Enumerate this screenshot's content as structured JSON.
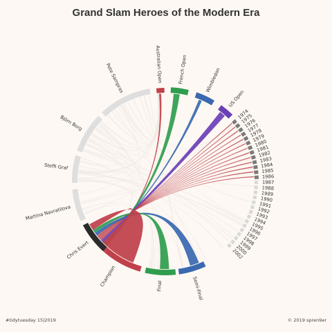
{
  "title": "Grand Slam Heroes of the Modern Era",
  "caption_left": "#tidytuesday 15|2019",
  "caption_right": "© 2019 spren9er",
  "chart_data": {
    "type": "chord",
    "colors": {
      "Australian Open": "#c0414b",
      "French Open": "#2f9d4e",
      "Wimbledon": "#3a69b0",
      "US Open": "#6b3fb6",
      "Chris Evert": "#2b2b2b",
      "player_default": "#dedede",
      "year_dark": "#7a7a7a",
      "year_light": "#d8d8d8"
    },
    "tournaments": [
      "Australian Open",
      "French Open",
      "Wimbledon",
      "US Open"
    ],
    "rounds": [
      "Semi-Final",
      "Final",
      "Champion"
    ],
    "players": [
      "Pete Sampras",
      "Björn Borg",
      "Steffi Graf",
      "Martina Navratilova",
      "Chris Evert"
    ],
    "years": [
      "1974",
      "1975",
      "1976",
      "1977",
      "1978",
      "1979",
      "1980",
      "1981",
      "1982",
      "1983",
      "1984",
      "1985",
      "1986",
      "1987",
      "1988",
      "1989",
      "1990",
      "1991",
      "1992",
      "1993",
      "1994",
      "1995",
      "1996",
      "1997",
      "1998",
      "1999",
      "2000",
      "2002"
    ],
    "highlighted_player": "Chris Evert",
    "highlighted_years": [
      "1974",
      "1975",
      "1976",
      "1977",
      "1978",
      "1979",
      "1980",
      "1981",
      "1982",
      "1983",
      "1984",
      "1985",
      "1986"
    ]
  }
}
